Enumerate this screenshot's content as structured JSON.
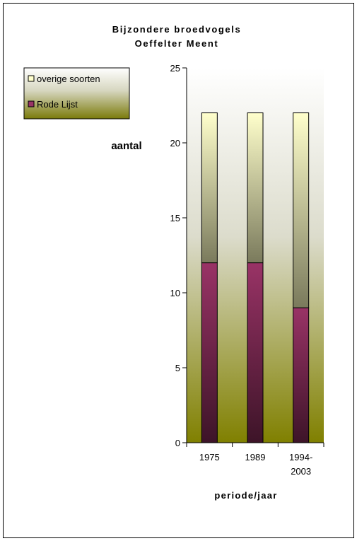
{
  "chart_data": {
    "type": "bar",
    "stacked": true,
    "title": [
      "Bijzondere broedvogels",
      "Oeffelter Meent"
    ],
    "ylabel": "aantal",
    "xlabel": "periode/jaar",
    "categories": [
      [
        "1975"
      ],
      [
        "1989"
      ],
      [
        "1994-",
        "2003"
      ]
    ],
    "ylim": [
      0,
      25
    ],
    "yticks": [
      0,
      5,
      10,
      15,
      20,
      25
    ],
    "series": [
      {
        "name": "Rode Lijst",
        "values": [
          12,
          12,
          9
        ],
        "color": "#993366"
      },
      {
        "name": "overige soorten",
        "values": [
          10,
          10,
          13
        ],
        "color": "#FFFFCC"
      }
    ],
    "legend_order": [
      1,
      0
    ],
    "legend_position": "top-left",
    "grid": false,
    "plot_background": "gradient light-yellow to olive"
  }
}
